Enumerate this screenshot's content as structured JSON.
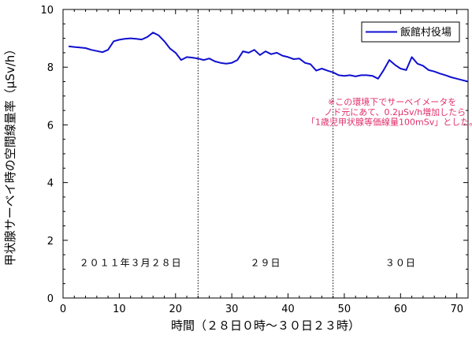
{
  "chart_data": {
    "type": "line",
    "xlabel": "時間（２８日０時〜３０日２３時）",
    "ylabel": "甲状腺サーベイ時の空間線量率（μSv/h）",
    "xlim": [
      0,
      72
    ],
    "ylim": [
      0,
      10
    ],
    "x_ticks": [
      0,
      10,
      20,
      30,
      40,
      50,
      60,
      70
    ],
    "y_ticks": [
      0,
      2,
      4,
      6,
      8,
      10
    ],
    "grid": false,
    "legend_position": "top-right",
    "day_boundaries": [
      24,
      48
    ],
    "day_labels": [
      {
        "text": "２０１１年３月２８日",
        "x": 12
      },
      {
        "text": "２９日",
        "x": 36
      },
      {
        "text": "３０日",
        "x": 60
      }
    ],
    "annotation": [
      "※この環境下でサーベイメータを",
      "ノド元にあて、0.2μSv/h増加したら",
      "「1歳児甲状腺等価線量100mSv」とした。"
    ],
    "annotation_color": "#e0306a",
    "series": [
      {
        "name": "飯館村役場",
        "color": "#1010d0",
        "x": [
          1,
          2,
          3,
          4,
          5,
          6,
          7,
          8,
          9,
          10,
          11,
          12,
          13,
          14,
          15,
          16,
          17,
          18,
          19,
          20,
          21,
          22,
          23,
          24,
          25,
          26,
          27,
          28,
          29,
          30,
          31,
          32,
          33,
          34,
          35,
          36,
          37,
          38,
          39,
          40,
          41,
          42,
          43,
          44,
          45,
          46,
          47,
          48,
          49,
          50,
          51,
          52,
          53,
          54,
          55,
          56,
          57,
          58,
          59,
          60,
          61,
          62,
          63,
          64,
          65,
          66,
          67,
          68,
          69,
          70,
          71,
          72
        ],
        "values": [
          8.72,
          8.7,
          8.68,
          8.66,
          8.6,
          8.56,
          8.52,
          8.6,
          8.9,
          8.95,
          8.98,
          9.0,
          8.98,
          8.96,
          9.05,
          9.2,
          9.1,
          8.9,
          8.65,
          8.5,
          8.25,
          8.35,
          8.33,
          8.3,
          8.25,
          8.3,
          8.2,
          8.15,
          8.12,
          8.15,
          8.25,
          8.55,
          8.5,
          8.6,
          8.42,
          8.55,
          8.45,
          8.5,
          8.4,
          8.35,
          8.28,
          8.3,
          8.15,
          8.1,
          7.88,
          7.95,
          7.88,
          7.82,
          7.72,
          7.7,
          7.72,
          7.68,
          7.72,
          7.72,
          7.7,
          7.6,
          7.9,
          8.25,
          8.08,
          7.95,
          7.9,
          8.35,
          8.12,
          8.05,
          7.9,
          7.85,
          7.78,
          7.72,
          7.65,
          7.6,
          7.55,
          7.5
        ]
      }
    ]
  }
}
